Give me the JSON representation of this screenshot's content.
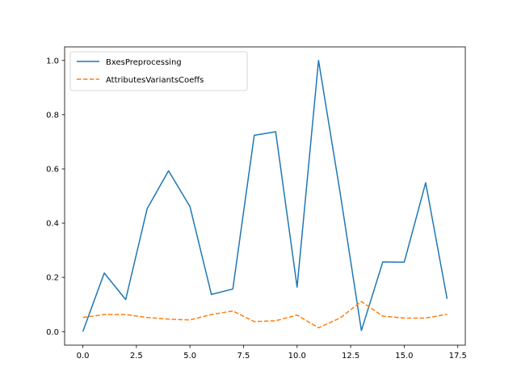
{
  "chart_data": {
    "type": "line",
    "title": "",
    "xlabel": "",
    "ylabel": "",
    "xlim": [
      -0.85,
      17.85
    ],
    "ylim": [
      -0.05,
      1.05
    ],
    "xticks": [
      0.0,
      2.5,
      5.0,
      7.5,
      10.0,
      12.5,
      15.0,
      17.5
    ],
    "xtick_labels": [
      "0.0",
      "2.5",
      "5.0",
      "7.5",
      "10.0",
      "12.5",
      "15.0",
      "17.5"
    ],
    "yticks": [
      0.0,
      0.2,
      0.4,
      0.6,
      0.8,
      1.0
    ],
    "ytick_labels": [
      "0.0",
      "0.2",
      "0.4",
      "0.6",
      "0.8",
      "1.0"
    ],
    "grid": false,
    "legend_position": "top-left",
    "x": [
      0,
      1,
      2,
      3,
      4,
      5,
      6,
      7,
      8,
      9,
      10,
      11,
      12,
      13,
      14,
      15,
      16,
      17
    ],
    "series": [
      {
        "name": "BxesPreprocessing",
        "color": "#1f77b4",
        "style": "solid",
        "values": [
          0.0,
          0.216,
          0.118,
          0.453,
          0.593,
          0.461,
          0.137,
          0.157,
          0.724,
          0.737,
          0.164,
          1.0,
          0.516,
          0.004,
          0.257,
          0.256,
          0.549,
          0.121
        ]
      },
      {
        "name": "AttributesVariantsCoeffs",
        "color": "#ff7f0e",
        "style": "dashed",
        "values": [
          0.052,
          0.063,
          0.063,
          0.052,
          0.046,
          0.043,
          0.063,
          0.076,
          0.037,
          0.04,
          0.061,
          0.014,
          0.05,
          0.111,
          0.057,
          0.05,
          0.05,
          0.064
        ]
      }
    ]
  }
}
